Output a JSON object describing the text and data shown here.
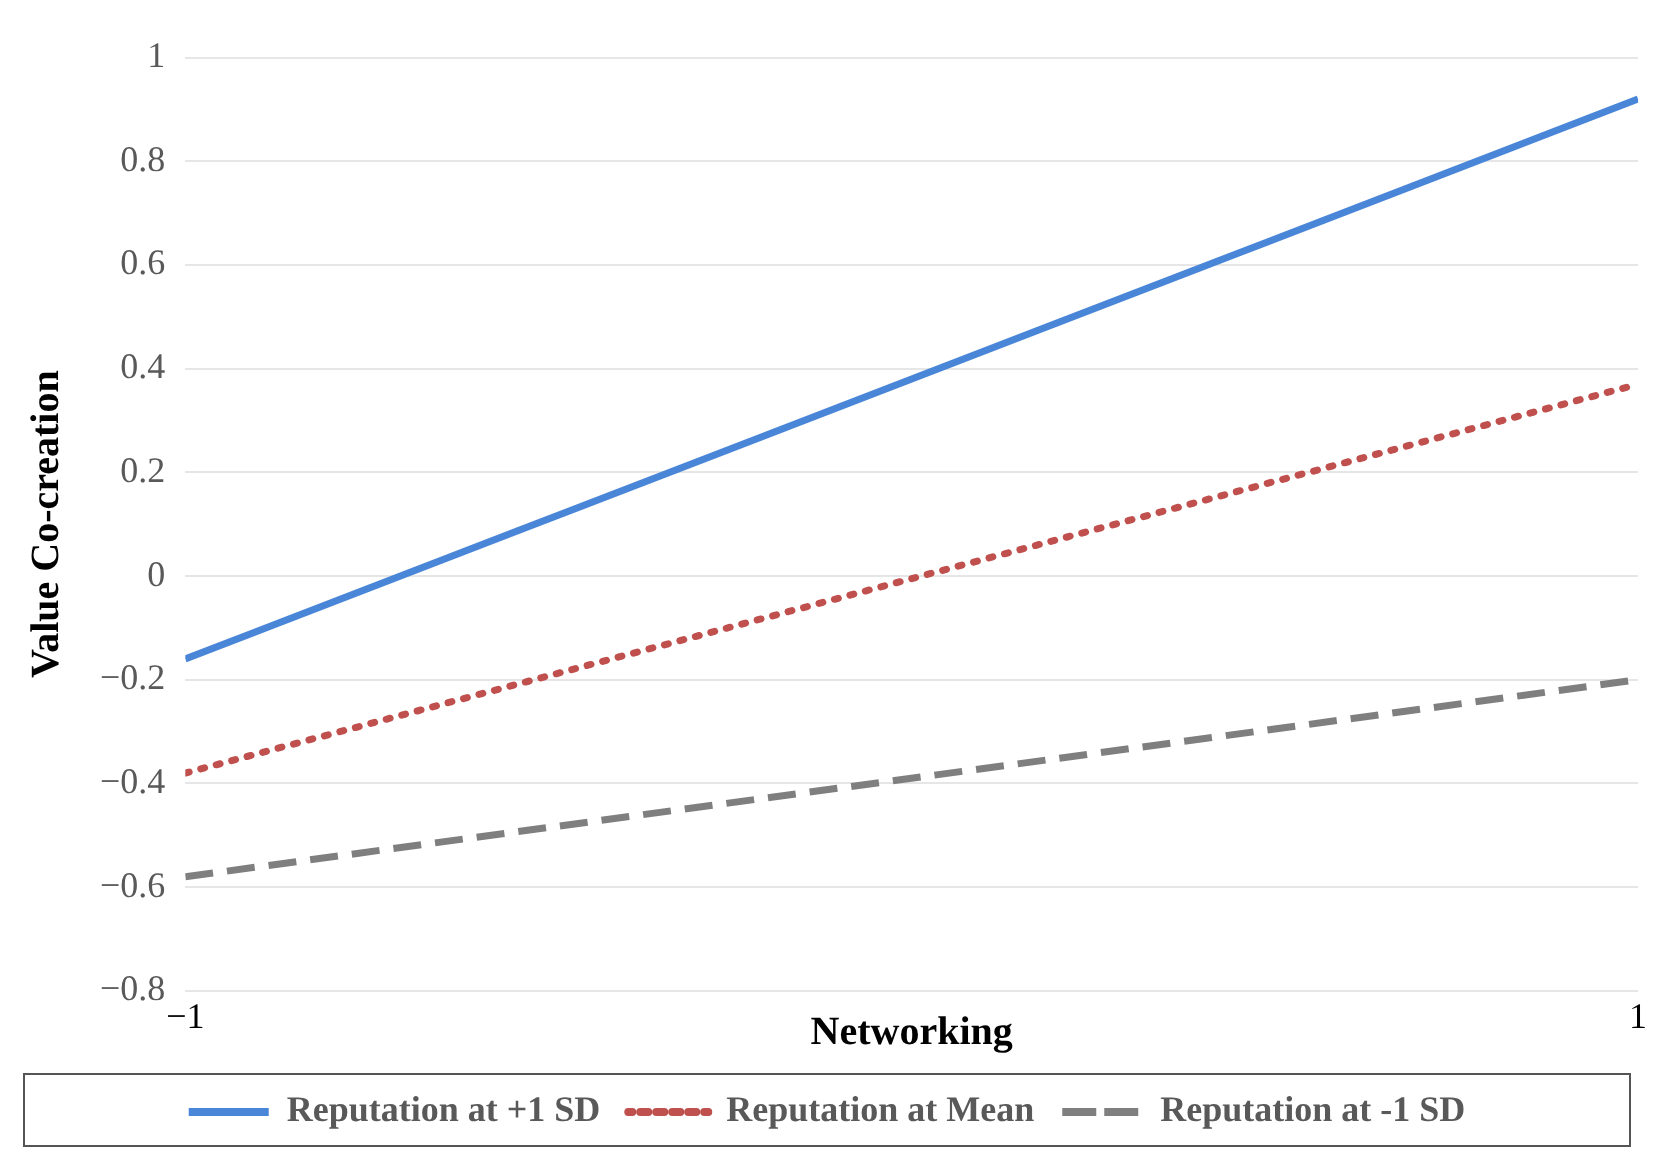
{
  "chart_data": {
    "type": "line",
    "xlabel": "Networking",
    "ylabel": "Value Co-creation",
    "x": [
      -1,
      1
    ],
    "series": [
      {
        "name": "Reputation at +1 SD",
        "color": "#4a86d8",
        "values": [
          -0.16,
          0.92
        ],
        "line_style": "solid"
      },
      {
        "name": "Reputation at Mean",
        "color": "#c0504d",
        "values": [
          -0.38,
          0.37
        ],
        "line_style": "dotted"
      },
      {
        "name": "Reputation at -1 SD",
        "color": "#7f7f7f",
        "values": [
          -0.58,
          -0.2
        ],
        "line_style": "dashed"
      }
    ],
    "xlim": [
      -1,
      1
    ],
    "xticks": [
      {
        "value": -1,
        "label": "−1"
      },
      1
    ],
    "ylim": [
      -0.8,
      1
    ],
    "yticks": [
      {
        "value": -0.8,
        "label": "−0.8"
      },
      {
        "value": -0.6,
        "label": "−0.6"
      },
      {
        "value": -0.4,
        "label": "−0.4"
      },
      {
        "value": -0.2,
        "label": "−0.2"
      },
      0,
      0.2,
      0.4,
      0.6,
      0.8,
      1
    ],
    "grid": "y",
    "legend": "bottom",
    "marker": "none"
  }
}
